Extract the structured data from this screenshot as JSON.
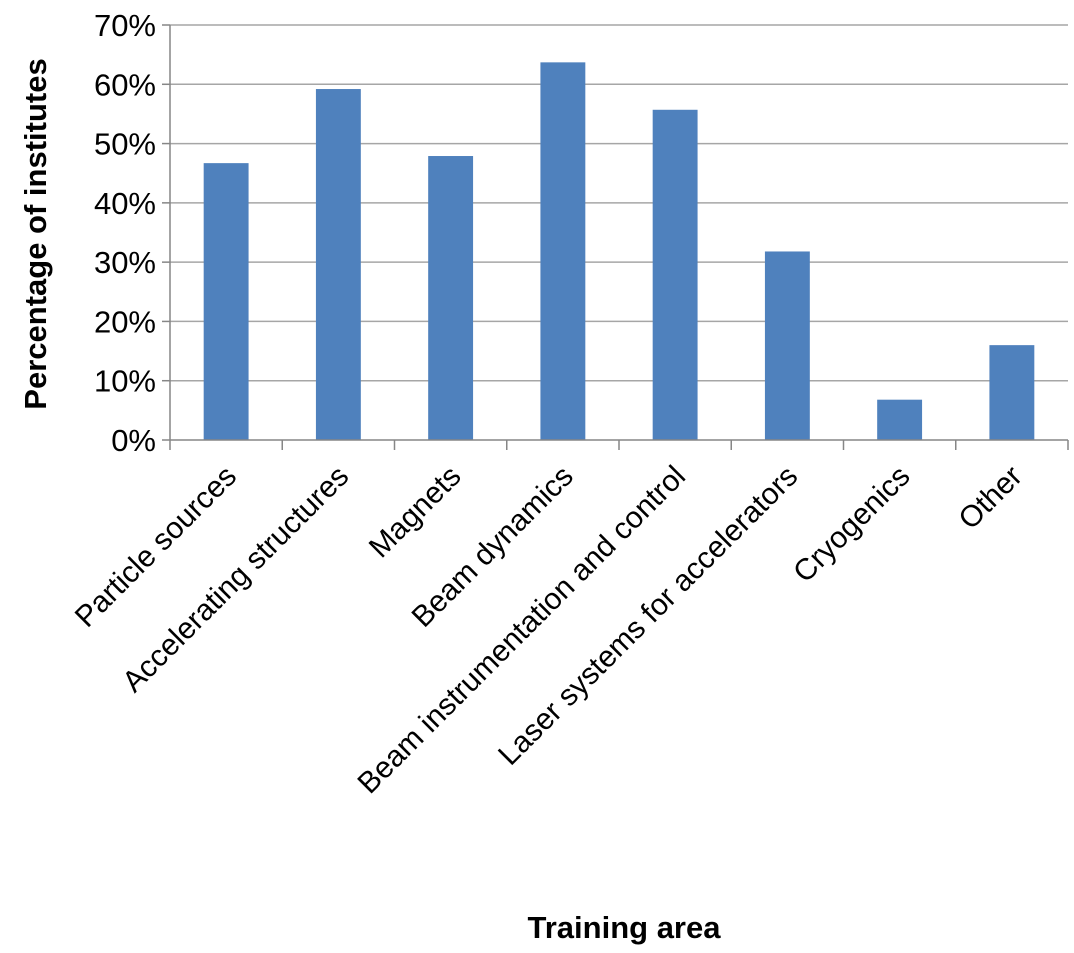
{
  "chart_data": {
    "type": "bar",
    "title": "",
    "xlabel": "Training area",
    "ylabel": "Percentage of institutes",
    "categories": [
      "Particle sources",
      "Accelerating structures",
      "Magnets",
      "Beam dynamics",
      "Beam instrumentation and control",
      "Laser systems for accelerators",
      "Cryogenics",
      "Other"
    ],
    "values": [
      46.7,
      59.2,
      47.9,
      63.7,
      55.7,
      31.8,
      6.8,
      16.0
    ],
    "ylim": [
      0,
      70
    ],
    "yticks": [
      0,
      10,
      20,
      30,
      40,
      50,
      60,
      70
    ],
    "ytick_labels": [
      "0%",
      "10%",
      "20%",
      "30%",
      "40%",
      "50%",
      "60%",
      "70%"
    ],
    "grid": true,
    "legend": "none",
    "colors": {
      "bar": "#4F81BD",
      "grid": "#A6A6A6",
      "axis": "#868686",
      "text": "#000000"
    }
  }
}
